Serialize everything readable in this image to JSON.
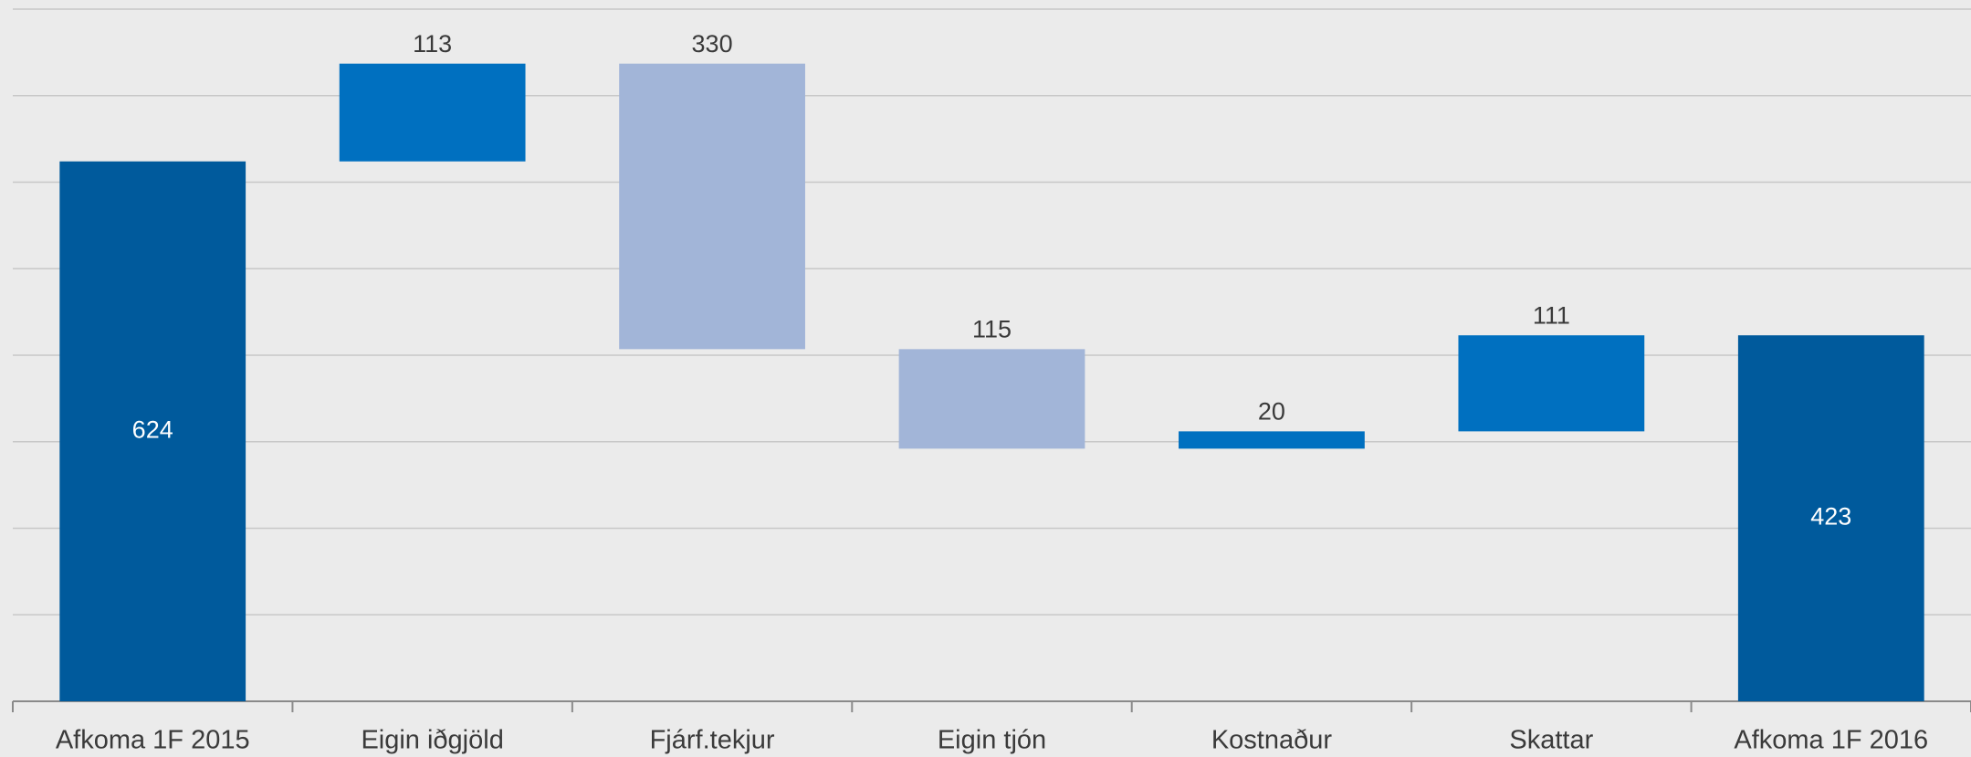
{
  "chart_data": {
    "type": "waterfall",
    "categories": [
      "Afkoma 1F 2015",
      "Eigin iðgjöld",
      "Fjárf.tekjur",
      "Eigin tjón",
      "Kostnaður",
      "Skattar",
      "Afkoma 1F 2016"
    ],
    "values": [
      624,
      113,
      -330,
      -115,
      20,
      111,
      423
    ],
    "value_labels": [
      "624",
      "113",
      "330",
      "115",
      "20",
      "111",
      "423"
    ],
    "measure": [
      "absolute",
      "relative",
      "relative",
      "relative",
      "relative",
      "relative",
      "absolute"
    ],
    "total_color": "#005a9c",
    "increase_color": "#0070c0",
    "decrease_color": "#a2b5d8",
    "ylim": [
      0,
      800
    ],
    "yticks": [
      0,
      100,
      200,
      300,
      400,
      500,
      600,
      700,
      800
    ],
    "grid": true
  }
}
